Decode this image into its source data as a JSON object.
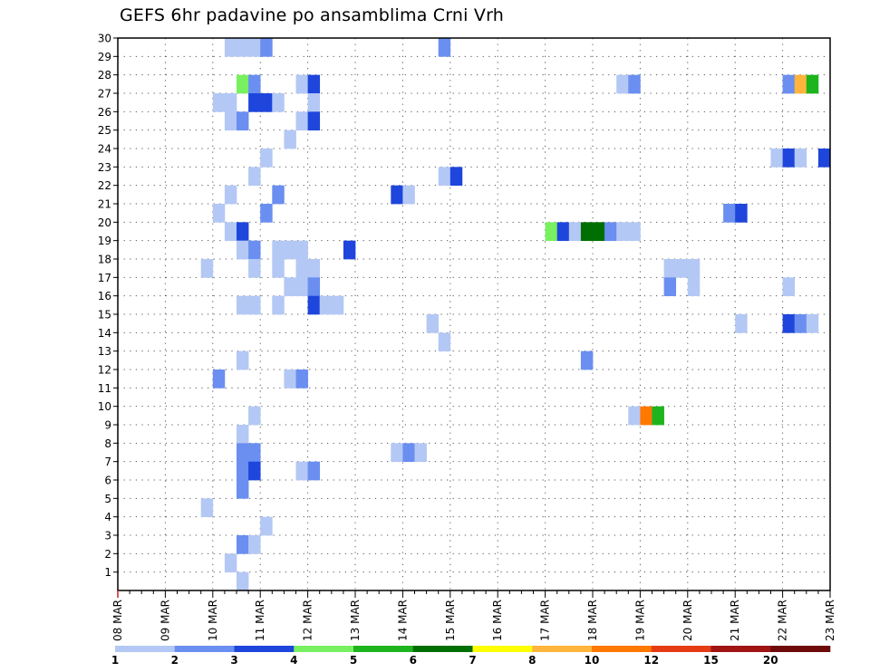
{
  "chart_data": {
    "type": "heatmap",
    "title": "GEFS 6hr padavine po ansamblima Crni Vrh",
    "x_ticks": [
      "08 MAR",
      "09 MAR",
      "10 MAR",
      "11 MAR",
      "12 MAR",
      "13 MAR",
      "14 MAR",
      "15 MAR",
      "16 MAR",
      "17 MAR",
      "18 MAR",
      "19 MAR",
      "20 MAR",
      "21 MAR",
      "22 MAR",
      "23 MAR"
    ],
    "y_ticks": [
      1,
      2,
      3,
      4,
      5,
      6,
      7,
      8,
      9,
      10,
      11,
      12,
      13,
      14,
      15,
      16,
      17,
      18,
      19,
      20,
      21,
      22,
      23,
      24,
      25,
      26,
      27,
      28,
      29,
      30
    ],
    "x_range": [
      "08 MAR 00",
      "23 MAR 00"
    ],
    "y_range": [
      0,
      30
    ],
    "grid": true,
    "legend_position": "bottom",
    "legend": {
      "labels": [
        "1",
        "2",
        "3",
        "4",
        "5",
        "6",
        "7",
        "8",
        "10",
        "12",
        "15",
        "20"
      ],
      "colors": [
        "#b4c8f5",
        "#6a8ff0",
        "#1e46dc",
        "#78f060",
        "#1eb41e",
        "#006e00",
        "#ffff00",
        "#ffb43c",
        "#ff7800",
        "#e63c14",
        "#a01414",
        "#6e0a0a"
      ]
    },
    "cell_class_colors": {
      "1": "#b4c8f5",
      "2": "#6a8ff0",
      "3": "#1e46dc",
      "5": "#78f060",
      "6": "#1eb41e",
      "7": "#006e00",
      "9": "#ffb43c",
      "10": "#ff7800"
    },
    "cells": [
      {
        "member": 30,
        "time": "10 MAR 06",
        "class": 1
      },
      {
        "member": 30,
        "time": "10 MAR 12",
        "class": 1
      },
      {
        "member": 30,
        "time": "10 MAR 18",
        "class": 1
      },
      {
        "member": 30,
        "time": "11 MAR 00",
        "class": 2
      },
      {
        "member": 30,
        "time": "14 MAR 18",
        "class": 2
      },
      {
        "member": 28,
        "time": "10 MAR 12",
        "class": 5
      },
      {
        "member": 28,
        "time": "10 MAR 18",
        "class": 2
      },
      {
        "member": 28,
        "time": "11 MAR 18",
        "class": 1
      },
      {
        "member": 28,
        "time": "12 MAR 00",
        "class": 3
      },
      {
        "member": 28,
        "time": "18 MAR 12",
        "class": 1
      },
      {
        "member": 28,
        "time": "18 MAR 18",
        "class": 2
      },
      {
        "member": 28,
        "time": "22 MAR 00",
        "class": 2
      },
      {
        "member": 28,
        "time": "22 MAR 06",
        "class": 9
      },
      {
        "member": 28,
        "time": "22 MAR 12",
        "class": 6
      },
      {
        "member": 27,
        "time": "10 MAR 00",
        "class": 1
      },
      {
        "member": 27,
        "time": "10 MAR 06",
        "class": 1
      },
      {
        "member": 27,
        "time": "10 MAR 18",
        "class": 3
      },
      {
        "member": 27,
        "time": "11 MAR 00",
        "class": 3
      },
      {
        "member": 27,
        "time": "11 MAR 06",
        "class": 1
      },
      {
        "member": 27,
        "time": "12 MAR 00",
        "class": 1
      },
      {
        "member": 26,
        "time": "10 MAR 06",
        "class": 1
      },
      {
        "member": 26,
        "time": "10 MAR 12",
        "class": 2
      },
      {
        "member": 26,
        "time": "11 MAR 18",
        "class": 1
      },
      {
        "member": 26,
        "time": "12 MAR 00",
        "class": 3
      },
      {
        "member": 25,
        "time": "11 MAR 12",
        "class": 1
      },
      {
        "member": 24,
        "time": "11 MAR 00",
        "class": 1
      },
      {
        "member": 24,
        "time": "21 MAR 18",
        "class": 1
      },
      {
        "member": 24,
        "time": "22 MAR 00",
        "class": 3
      },
      {
        "member": 24,
        "time": "22 MAR 06",
        "class": 1
      },
      {
        "member": 24,
        "time": "22 MAR 18",
        "class": 3
      },
      {
        "member": 23,
        "time": "10 MAR 18",
        "class": 1
      },
      {
        "member": 23,
        "time": "14 MAR 18",
        "class": 1
      },
      {
        "member": 23,
        "time": "15 MAR 00",
        "class": 3
      },
      {
        "member": 22,
        "time": "10 MAR 06",
        "class": 1
      },
      {
        "member": 22,
        "time": "11 MAR 06",
        "class": 2
      },
      {
        "member": 22,
        "time": "13 MAR 18",
        "class": 3
      },
      {
        "member": 22,
        "time": "14 MAR 00",
        "class": 1
      },
      {
        "member": 21,
        "time": "10 MAR 00",
        "class": 1
      },
      {
        "member": 21,
        "time": "11 MAR 00",
        "class": 2
      },
      {
        "member": 21,
        "time": "20 MAR 18",
        "class": 2
      },
      {
        "member": 21,
        "time": "21 MAR 00",
        "class": 3
      },
      {
        "member": 20,
        "time": "10 MAR 06",
        "class": 1
      },
      {
        "member": 20,
        "time": "10 MAR 12",
        "class": 3
      },
      {
        "member": 20,
        "time": "17 MAR 00",
        "class": 5
      },
      {
        "member": 20,
        "time": "17 MAR 06",
        "class": 3
      },
      {
        "member": 20,
        "time": "17 MAR 12",
        "class": 1
      },
      {
        "member": 20,
        "time": "17 MAR 18",
        "class": 7
      },
      {
        "member": 20,
        "time": "18 MAR 00",
        "class": 7
      },
      {
        "member": 20,
        "time": "18 MAR 06",
        "class": 2
      },
      {
        "member": 20,
        "time": "18 MAR 12",
        "class": 1
      },
      {
        "member": 20,
        "time": "18 MAR 18",
        "class": 1
      },
      {
        "member": 19,
        "time": "10 MAR 12",
        "class": 1
      },
      {
        "member": 19,
        "time": "10 MAR 18",
        "class": 2
      },
      {
        "member": 19,
        "time": "11 MAR 06",
        "class": 1
      },
      {
        "member": 19,
        "time": "11 MAR 12",
        "class": 1
      },
      {
        "member": 19,
        "time": "11 MAR 18",
        "class": 1
      },
      {
        "member": 19,
        "time": "12 MAR 18",
        "class": 3
      },
      {
        "member": 18,
        "time": "09 MAR 18",
        "class": 1
      },
      {
        "member": 18,
        "time": "10 MAR 18",
        "class": 1
      },
      {
        "member": 18,
        "time": "11 MAR 06",
        "class": 1
      },
      {
        "member": 18,
        "time": "11 MAR 18",
        "class": 1
      },
      {
        "member": 18,
        "time": "12 MAR 00",
        "class": 1
      },
      {
        "member": 18,
        "time": "19 MAR 12",
        "class": 1
      },
      {
        "member": 18,
        "time": "19 MAR 18",
        "class": 1
      },
      {
        "member": 18,
        "time": "20 MAR 00",
        "class": 1
      },
      {
        "member": 17,
        "time": "11 MAR 12",
        "class": 1
      },
      {
        "member": 17,
        "time": "11 MAR 18",
        "class": 1
      },
      {
        "member": 17,
        "time": "12 MAR 00",
        "class": 2
      },
      {
        "member": 17,
        "time": "19 MAR 12",
        "class": 2
      },
      {
        "member": 17,
        "time": "20 MAR 00",
        "class": 1
      },
      {
        "member": 17,
        "time": "22 MAR 00",
        "class": 1
      },
      {
        "member": 16,
        "time": "10 MAR 12",
        "class": 1
      },
      {
        "member": 16,
        "time": "10 MAR 18",
        "class": 1
      },
      {
        "member": 16,
        "time": "11 MAR 06",
        "class": 1
      },
      {
        "member": 16,
        "time": "12 MAR 00",
        "class": 3
      },
      {
        "member": 16,
        "time": "12 MAR 06",
        "class": 1
      },
      {
        "member": 16,
        "time": "12 MAR 12",
        "class": 1
      },
      {
        "member": 15,
        "time": "14 MAR 12",
        "class": 1
      },
      {
        "member": 15,
        "time": "21 MAR 00",
        "class": 1
      },
      {
        "member": 15,
        "time": "22 MAR 00",
        "class": 3
      },
      {
        "member": 15,
        "time": "22 MAR 06",
        "class": 2
      },
      {
        "member": 15,
        "time": "22 MAR 12",
        "class": 1
      },
      {
        "member": 14,
        "time": "14 MAR 18",
        "class": 1
      },
      {
        "member": 13,
        "time": "10 MAR 12",
        "class": 1
      },
      {
        "member": 13,
        "time": "17 MAR 18",
        "class": 2
      },
      {
        "member": 12,
        "time": "10 MAR 00",
        "class": 2
      },
      {
        "member": 12,
        "time": "11 MAR 12",
        "class": 1
      },
      {
        "member": 12,
        "time": "11 MAR 18",
        "class": 2
      },
      {
        "member": 10,
        "time": "10 MAR 18",
        "class": 1
      },
      {
        "member": 10,
        "time": "18 MAR 18",
        "class": 1
      },
      {
        "member": 10,
        "time": "19 MAR 00",
        "class": 10
      },
      {
        "member": 10,
        "time": "19 MAR 06",
        "class": 6
      },
      {
        "member": 9,
        "time": "10 MAR 12",
        "class": 1
      },
      {
        "member": 8,
        "time": "10 MAR 12",
        "class": 2
      },
      {
        "member": 8,
        "time": "10 MAR 18",
        "class": 2
      },
      {
        "member": 8,
        "time": "13 MAR 18",
        "class": 1
      },
      {
        "member": 8,
        "time": "14 MAR 00",
        "class": 2
      },
      {
        "member": 8,
        "time": "14 MAR 06",
        "class": 1
      },
      {
        "member": 7,
        "time": "10 MAR 12",
        "class": 2
      },
      {
        "member": 7,
        "time": "10 MAR 18",
        "class": 3
      },
      {
        "member": 7,
        "time": "11 MAR 18",
        "class": 1
      },
      {
        "member": 7,
        "time": "12 MAR 00",
        "class": 2
      },
      {
        "member": 6,
        "time": "10 MAR 12",
        "class": 2
      },
      {
        "member": 5,
        "time": "09 MAR 18",
        "class": 1
      },
      {
        "member": 4,
        "time": "11 MAR 00",
        "class": 1
      },
      {
        "member": 3,
        "time": "10 MAR 12",
        "class": 2
      },
      {
        "member": 3,
        "time": "10 MAR 18",
        "class": 1
      },
      {
        "member": 2,
        "time": "10 MAR 06",
        "class": 1
      },
      {
        "member": 1,
        "time": "10 MAR 12",
        "class": 1
      }
    ]
  }
}
